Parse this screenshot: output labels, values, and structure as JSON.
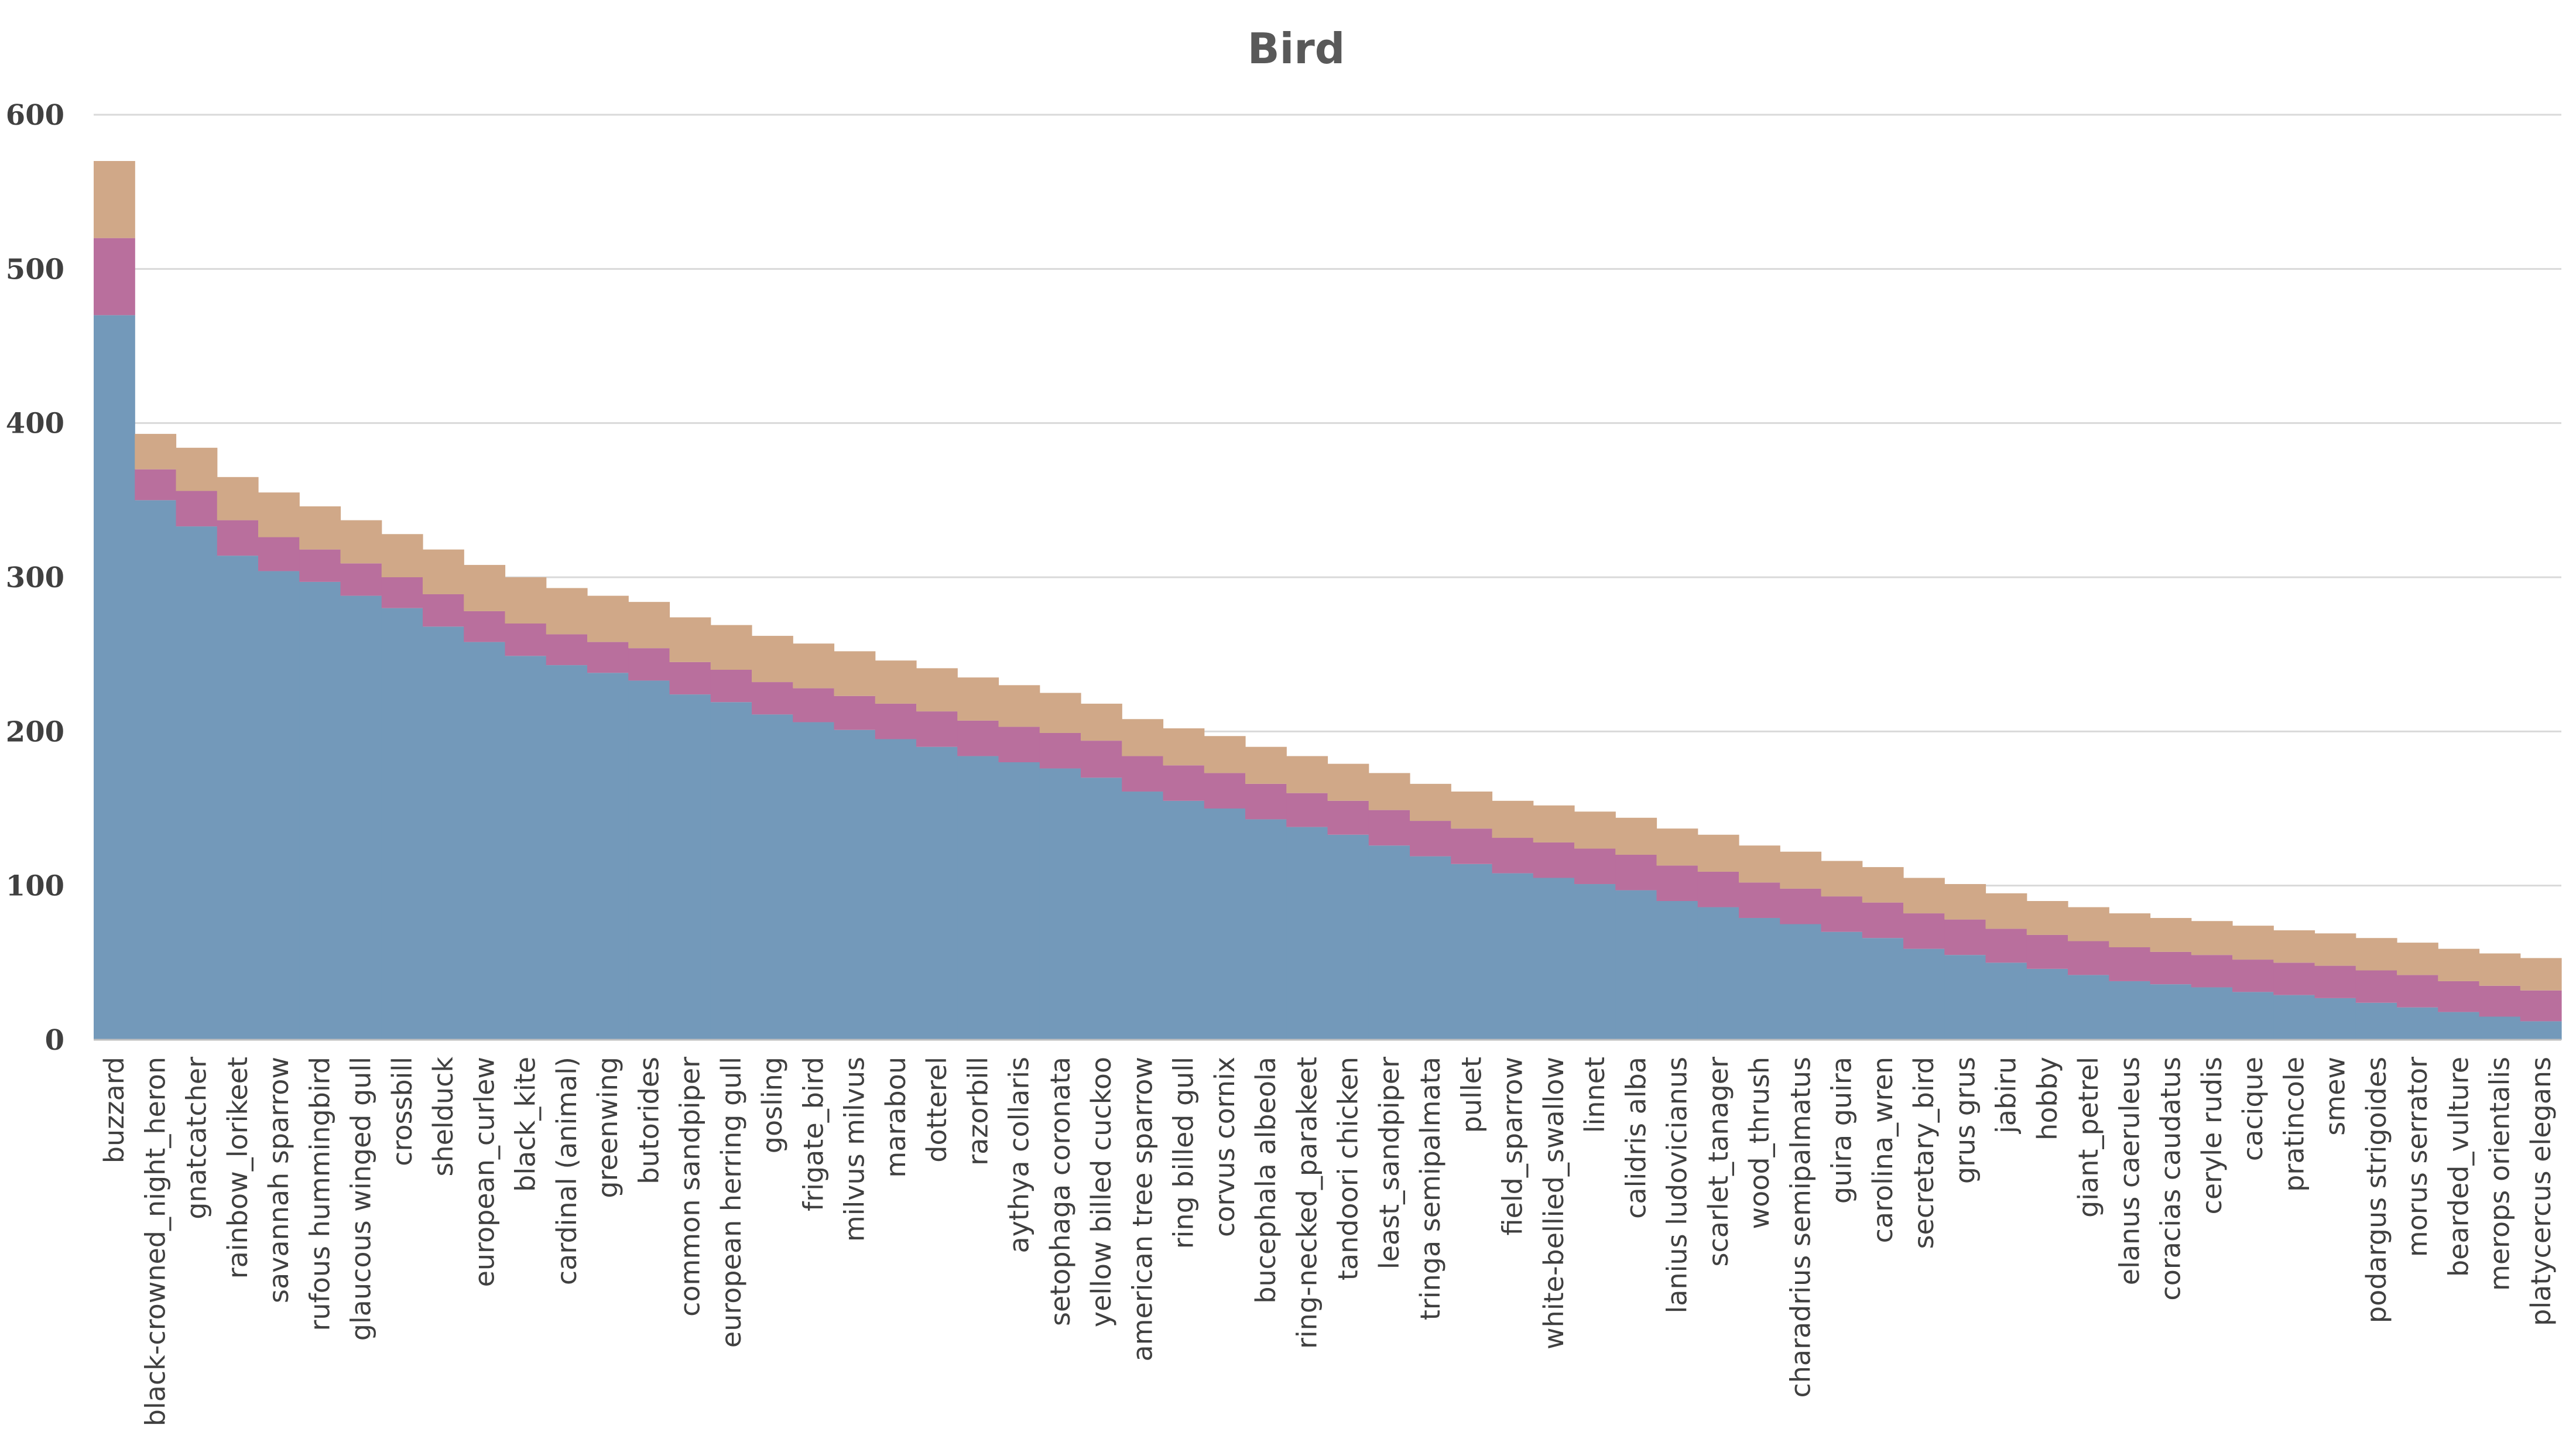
{
  "chart_data": {
    "type": "bar",
    "stacked": true,
    "title": "Bird",
    "xlabel": "",
    "ylabel": "",
    "ylim": [
      0,
      600
    ],
    "yticks": [
      0,
      100,
      200,
      300,
      400,
      500,
      600
    ],
    "grid": true,
    "legend": "none",
    "colors": [
      "#7399ba",
      "#b96f9d",
      "#d0a888"
    ],
    "categories": [
      "buzzard",
      "black-crowned_night_heron",
      "gnatcatcher",
      "rainbow_lorikeet",
      "savannah sparrow",
      "rufous hummingbird",
      "glaucous winged gull",
      "crossbill",
      "shelduck",
      "european_curlew",
      "black_kite",
      "cardinal (animal)",
      "greenwing",
      "butorides",
      "common sandpiper",
      "european herring gull",
      "gosling",
      "frigate_bird",
      "milvus milvus",
      "marabou",
      "dotterel",
      "razorbill",
      "aythya collaris",
      "setophaga coronata",
      "yellow billed cuckoo",
      "american tree sparrow",
      "ring billed gull",
      "corvus cornix",
      "bucephala albeola",
      "ring-necked_parakeet",
      "tandoori chicken",
      "least_sandpiper",
      "tringa semipalmata",
      "pullet",
      "field_sparrow",
      "white-bellied_swallow",
      "linnet",
      "calidris alba",
      "lanius ludovicianus",
      "scarlet_tanager",
      "wood_thrush",
      "charadrius semipalmatus",
      "guira guira",
      "carolina_wren",
      "secretary_bird",
      "grus grus",
      "jabiru",
      "hobby",
      "giant_petrel",
      "elanus caeruleus",
      "coracias caudatus",
      "ceryle rudis",
      "cacique",
      "pratincole",
      "smew",
      "podargus strigoides",
      "morus serrator",
      "bearded_vulture",
      "merops orientalis",
      "platycercus elegans"
    ],
    "series": [
      {
        "values": [
          470,
          350,
          333,
          314,
          304,
          297,
          288,
          280,
          268,
          258,
          249,
          243,
          238,
          233,
          224,
          219,
          211,
          206,
          201,
          195,
          190,
          184,
          180,
          176,
          170,
          161,
          155,
          150,
          143,
          138,
          133,
          126,
          119,
          114,
          108,
          105,
          101,
          97,
          90,
          86,
          79,
          75,
          70,
          66,
          59,
          55,
          50,
          46,
          42,
          38,
          36,
          34,
          31,
          29,
          27,
          24,
          21,
          18,
          15,
          12
        ]
      },
      {
        "values": [
          50,
          20,
          23,
          23,
          22,
          21,
          21,
          20,
          21,
          20,
          21,
          20,
          20,
          21,
          21,
          21,
          21,
          22,
          22,
          23,
          23,
          23,
          23,
          23,
          24,
          23,
          23,
          23,
          23,
          22,
          22,
          23,
          23,
          23,
          23,
          23,
          23,
          23,
          23,
          23,
          23,
          23,
          23,
          23,
          23,
          23,
          22,
          22,
          22,
          22,
          21,
          21,
          21,
          21,
          21,
          21,
          21,
          20,
          20,
          20
        ]
      },
      {
        "values": [
          50,
          23,
          28,
          28,
          29,
          28,
          28,
          28,
          29,
          30,
          30,
          30,
          30,
          30,
          29,
          29,
          30,
          29,
          29,
          28,
          28,
          28,
          27,
          26,
          24,
          24,
          24,
          24,
          24,
          24,
          24,
          24,
          24,
          24,
          24,
          24,
          24,
          24,
          24,
          24,
          24,
          24,
          23,
          23,
          23,
          23,
          23,
          22,
          22,
          22,
          22,
          22,
          22,
          21,
          21,
          21,
          21,
          21,
          21,
          21
        ]
      }
    ]
  }
}
